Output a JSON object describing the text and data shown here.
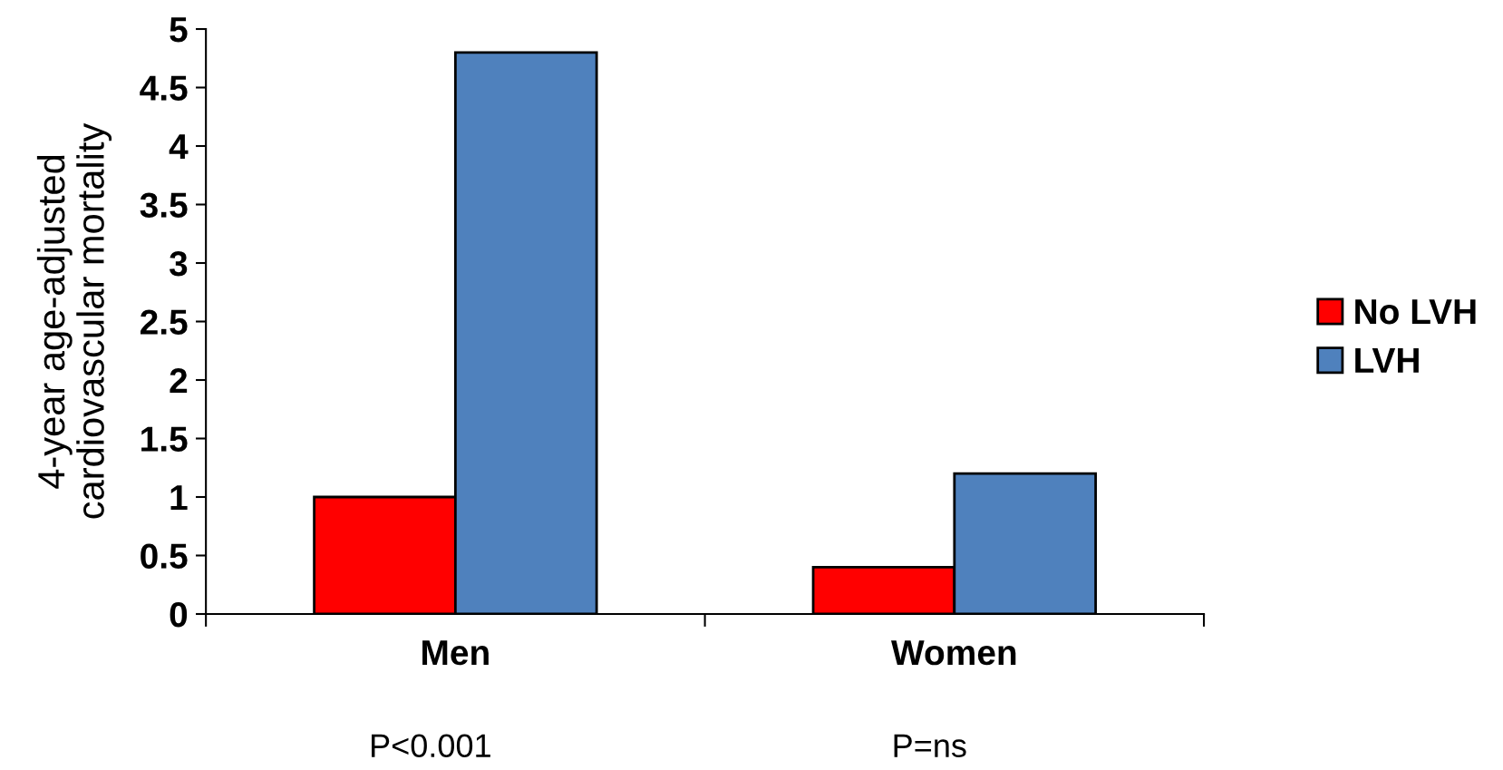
{
  "chart_data": {
    "type": "bar",
    "ylabel": "4-year age-adjusted\ncardiovascular mortality",
    "categories": [
      "Men",
      "Women"
    ],
    "series": [
      {
        "name": "No LVH",
        "color": "#ff0000",
        "values": [
          1.0,
          0.4
        ]
      },
      {
        "name": "LVH",
        "color": "#4f81bd",
        "values": [
          4.8,
          1.2
        ]
      }
    ],
    "ylim": [
      0,
      5
    ],
    "yticks": [
      0,
      0.5,
      1,
      1.5,
      2,
      2.5,
      3,
      3.5,
      4,
      4.5,
      5
    ],
    "grid": false,
    "legend": "right",
    "annotations": [
      "P<0.001",
      "P=ns"
    ]
  }
}
